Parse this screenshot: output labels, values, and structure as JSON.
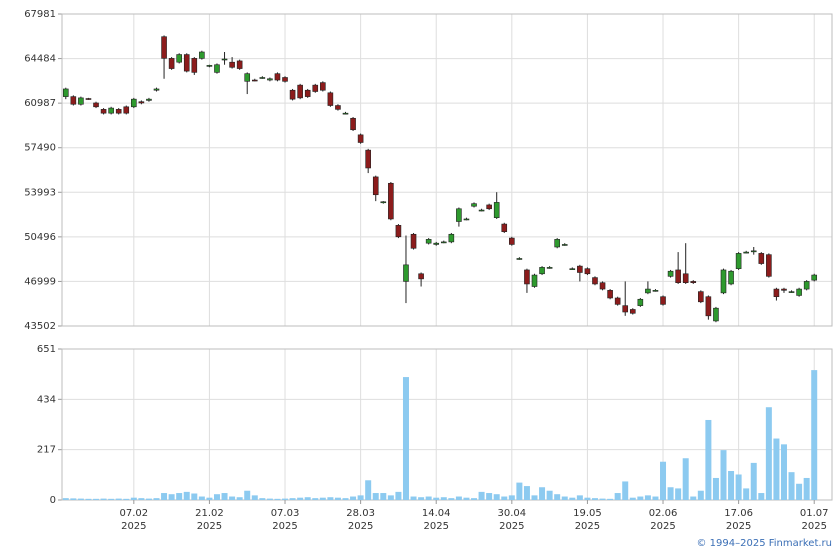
{
  "chart_data": [
    {
      "type": "candlestick",
      "categories": [
        null,
        null,
        null,
        null,
        null,
        null,
        null,
        null,
        null,
        [
          "07.02",
          "2025"
        ],
        null,
        null,
        null,
        null,
        null,
        null,
        null,
        null,
        null,
        [
          "21.02",
          "2025"
        ],
        null,
        null,
        null,
        null,
        null,
        null,
        null,
        null,
        null,
        [
          "07.03",
          "2025"
        ],
        null,
        null,
        null,
        null,
        null,
        null,
        null,
        null,
        null,
        [
          "28.03",
          "2025"
        ],
        null,
        null,
        null,
        null,
        null,
        null,
        null,
        null,
        null,
        [
          "14.04",
          "2025"
        ],
        null,
        null,
        null,
        null,
        null,
        null,
        null,
        null,
        null,
        [
          "30.04",
          "2025"
        ],
        null,
        null,
        null,
        null,
        null,
        null,
        null,
        null,
        null,
        [
          "19.05",
          "2025"
        ],
        null,
        null,
        null,
        null,
        null,
        null,
        null,
        null,
        null,
        [
          "02.06",
          "2025"
        ],
        null,
        null,
        null,
        null,
        null,
        null,
        null,
        null,
        null,
        [
          "17.06",
          "2025"
        ],
        null,
        null,
        null,
        null,
        null,
        null,
        null,
        null,
        null,
        [
          "01.07",
          "2025"
        ]
      ],
      "open": [
        61500,
        61500,
        60900,
        61350,
        61000,
        60500,
        60200,
        60500,
        60700,
        60700,
        61100,
        61200,
        62000,
        66200,
        64500,
        64200,
        64800,
        64500,
        64500,
        63900,
        63400,
        64400,
        64200,
        64300,
        62700,
        62800,
        63000,
        62800,
        63300,
        63000,
        62000,
        62400,
        62000,
        62400,
        62600,
        61800,
        60800,
        60200,
        59800,
        58500,
        57300,
        55200,
        53200,
        54700,
        51400,
        47000,
        50700,
        47600,
        50000,
        49900,
        50100,
        50100,
        51700,
        51900,
        52900,
        52600,
        53000,
        52000,
        51500,
        50400,
        48800,
        47900,
        46600,
        47600,
        48100,
        49700,
        49900,
        48000,
        48200,
        48000,
        47300,
        46900,
        46300,
        45700,
        45100,
        44800,
        45100,
        46100,
        46300,
        45800,
        47400,
        47900,
        47600,
        47000,
        46200,
        45800,
        43900,
        46100,
        46800,
        48000,
        49300,
        49350,
        49200,
        49100,
        46400,
        46400,
        46200,
        45900,
        46400,
        47100
      ],
      "close": [
        62100,
        60900,
        61400,
        61300,
        60700,
        60200,
        60600,
        60200,
        60200,
        61300,
        61000,
        61300,
        62100,
        64500,
        63700,
        64800,
        63500,
        63400,
        65000,
        63950,
        64000,
        64450,
        63800,
        63700,
        63300,
        62750,
        63000,
        62900,
        62800,
        62700,
        61300,
        61400,
        61500,
        61900,
        62000,
        60800,
        60500,
        60200,
        58900,
        57900,
        55900,
        53800,
        53250,
        51900,
        50500,
        48300,
        49600,
        47200,
        50300,
        50000,
        50100,
        50700,
        52700,
        51900,
        53100,
        52600,
        52700,
        53200,
        50900,
        49900,
        48800,
        46800,
        47500,
        48100,
        48100,
        50300,
        49900,
        48000,
        47700,
        47600,
        46800,
        46400,
        45700,
        45200,
        44600,
        44500,
        45600,
        46400,
        46300,
        45200,
        47800,
        46900,
        46900,
        46900,
        45400,
        44300,
        44900,
        47900,
        47800,
        49200,
        49300,
        49400,
        48400,
        47400,
        45800,
        46300,
        46200,
        46400,
        47000,
        47500
      ],
      "high": [
        62200,
        61600,
        61500,
        61400,
        61100,
        60600,
        60700,
        60600,
        60800,
        61400,
        61200,
        61400,
        62200,
        66300,
        64600,
        64900,
        64900,
        64600,
        65100,
        64000,
        64100,
        65000,
        64600,
        64400,
        63400,
        62900,
        63100,
        63000,
        63400,
        63100,
        62100,
        62500,
        62100,
        62500,
        62700,
        61900,
        60900,
        60300,
        59900,
        58600,
        57400,
        55300,
        53300,
        54800,
        51500,
        50600,
        50800,
        47700,
        50400,
        50100,
        50200,
        50800,
        52800,
        52000,
        53200,
        52700,
        53100,
        54000,
        51600,
        50500,
        48900,
        48000,
        47600,
        48200,
        48200,
        50400,
        50000,
        48100,
        48300,
        48100,
        47400,
        47000,
        46400,
        45800,
        47000,
        44900,
        45700,
        47000,
        46400,
        45900,
        47900,
        49300,
        50000,
        47100,
        46300,
        45900,
        45000,
        48000,
        47900,
        49300,
        49400,
        49700,
        49300,
        49200,
        46500,
        46500,
        46300,
        46500,
        47100,
        47600
      ],
      "low": [
        61300,
        60800,
        60800,
        61250,
        60600,
        60100,
        60100,
        60100,
        60100,
        60600,
        60900,
        61100,
        61900,
        62900,
        63600,
        64100,
        63400,
        63200,
        64400,
        63800,
        63300,
        64000,
        63700,
        63600,
        61700,
        62700,
        62900,
        62700,
        62700,
        62600,
        61200,
        61300,
        61400,
        61800,
        61900,
        60700,
        60400,
        60100,
        58800,
        57800,
        55500,
        53300,
        53100,
        51800,
        50400,
        45300,
        49500,
        46600,
        49900,
        49800,
        50000,
        50000,
        51300,
        51800,
        52800,
        52500,
        52600,
        51900,
        50800,
        49800,
        48700,
        46100,
        46500,
        47500,
        48000,
        49600,
        49800,
        47900,
        47000,
        47500,
        46700,
        46300,
        45600,
        45100,
        44300,
        44400,
        45000,
        46000,
        46200,
        45100,
        47300,
        46800,
        46800,
        46800,
        45300,
        44000,
        43800,
        46000,
        46700,
        47900,
        49200,
        49100,
        48300,
        47300,
        45500,
        46100,
        46100,
        45800,
        46300,
        47000
      ],
      "up_color": "#2e9a2e",
      "down_color": "#8c1c1c",
      "ylim": [
        43502,
        67981
      ],
      "yticks": [
        43502,
        46999,
        50496,
        53993,
        57490,
        60987,
        64484,
        67981
      ],
      "grid": true
    },
    {
      "type": "bar",
      "values": [
        8,
        7,
        6,
        5,
        5,
        6,
        5,
        6,
        5,
        10,
        8,
        6,
        8,
        30,
        25,
        30,
        35,
        28,
        15,
        10,
        25,
        30,
        15,
        12,
        40,
        20,
        8,
        6,
        5,
        6,
        8,
        10,
        12,
        8,
        10,
        12,
        10,
        8,
        15,
        20,
        85,
        30,
        30,
        20,
        35,
        530,
        15,
        12,
        15,
        10,
        12,
        8,
        15,
        10,
        8,
        35,
        30,
        25,
        15,
        20,
        75,
        60,
        20,
        55,
        40,
        25,
        15,
        10,
        20,
        10,
        8,
        6,
        5,
        30,
        80,
        10,
        15,
        20,
        15,
        165,
        55,
        50,
        180,
        15,
        40,
        345,
        95,
        215,
        125,
        110,
        50,
        160,
        30,
        400,
        265,
        240,
        120,
        70,
        95,
        560
      ],
      "color": "#8ccaf0",
      "ylim": [
        0,
        651
      ],
      "yticks": [
        0,
        217,
        434,
        651
      ],
      "grid": true
    }
  ],
  "footer": "© 1994–2025 Finmarket.ru"
}
